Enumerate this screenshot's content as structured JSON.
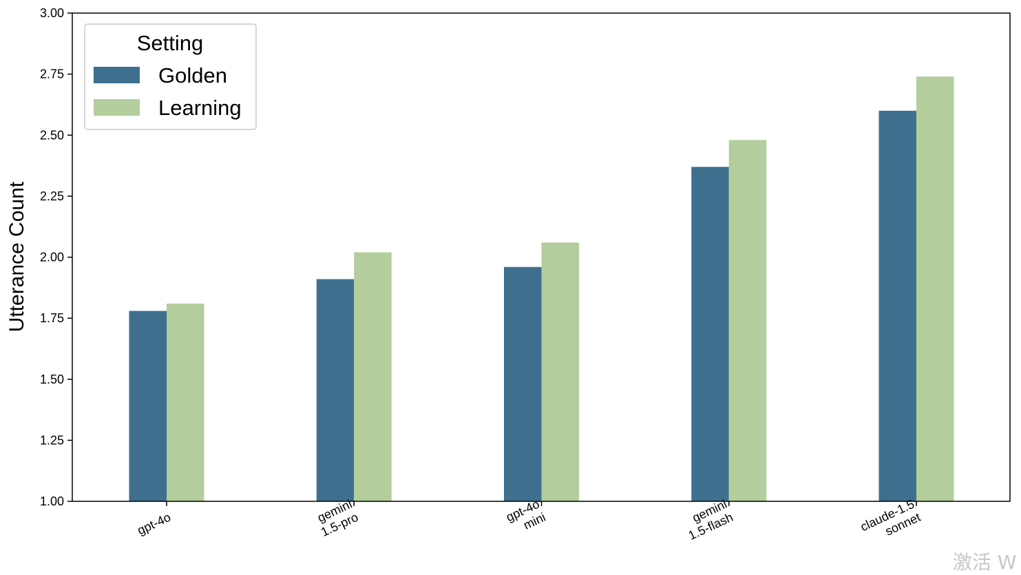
{
  "chart_data": {
    "type": "bar",
    "title": "",
    "xlabel": "",
    "ylabel": "Utterance Count",
    "ylim": [
      1.0,
      3.0
    ],
    "yticks": [
      "1.00",
      "1.25",
      "1.50",
      "1.75",
      "2.00",
      "2.25",
      "2.50",
      "2.75",
      "3.00"
    ],
    "categories": [
      [
        "gpt-4o"
      ],
      [
        "gemini",
        "1.5-pro"
      ],
      [
        "gpt-4o",
        "mini"
      ],
      [
        "gemini",
        "1.5-flash"
      ],
      [
        "claude-1.5",
        "sonnet"
      ]
    ],
    "series": [
      {
        "name": "Golden",
        "color": "#3f6f8f",
        "values": [
          1.78,
          1.91,
          1.96,
          2.37,
          2.6
        ]
      },
      {
        "name": "Learning",
        "color": "#b3cd9c",
        "values": [
          1.81,
          2.02,
          2.06,
          2.48,
          2.74
        ]
      }
    ],
    "legend": {
      "title": "Setting",
      "position": "top-left"
    },
    "grid": false
  },
  "watermark": "激活 W"
}
